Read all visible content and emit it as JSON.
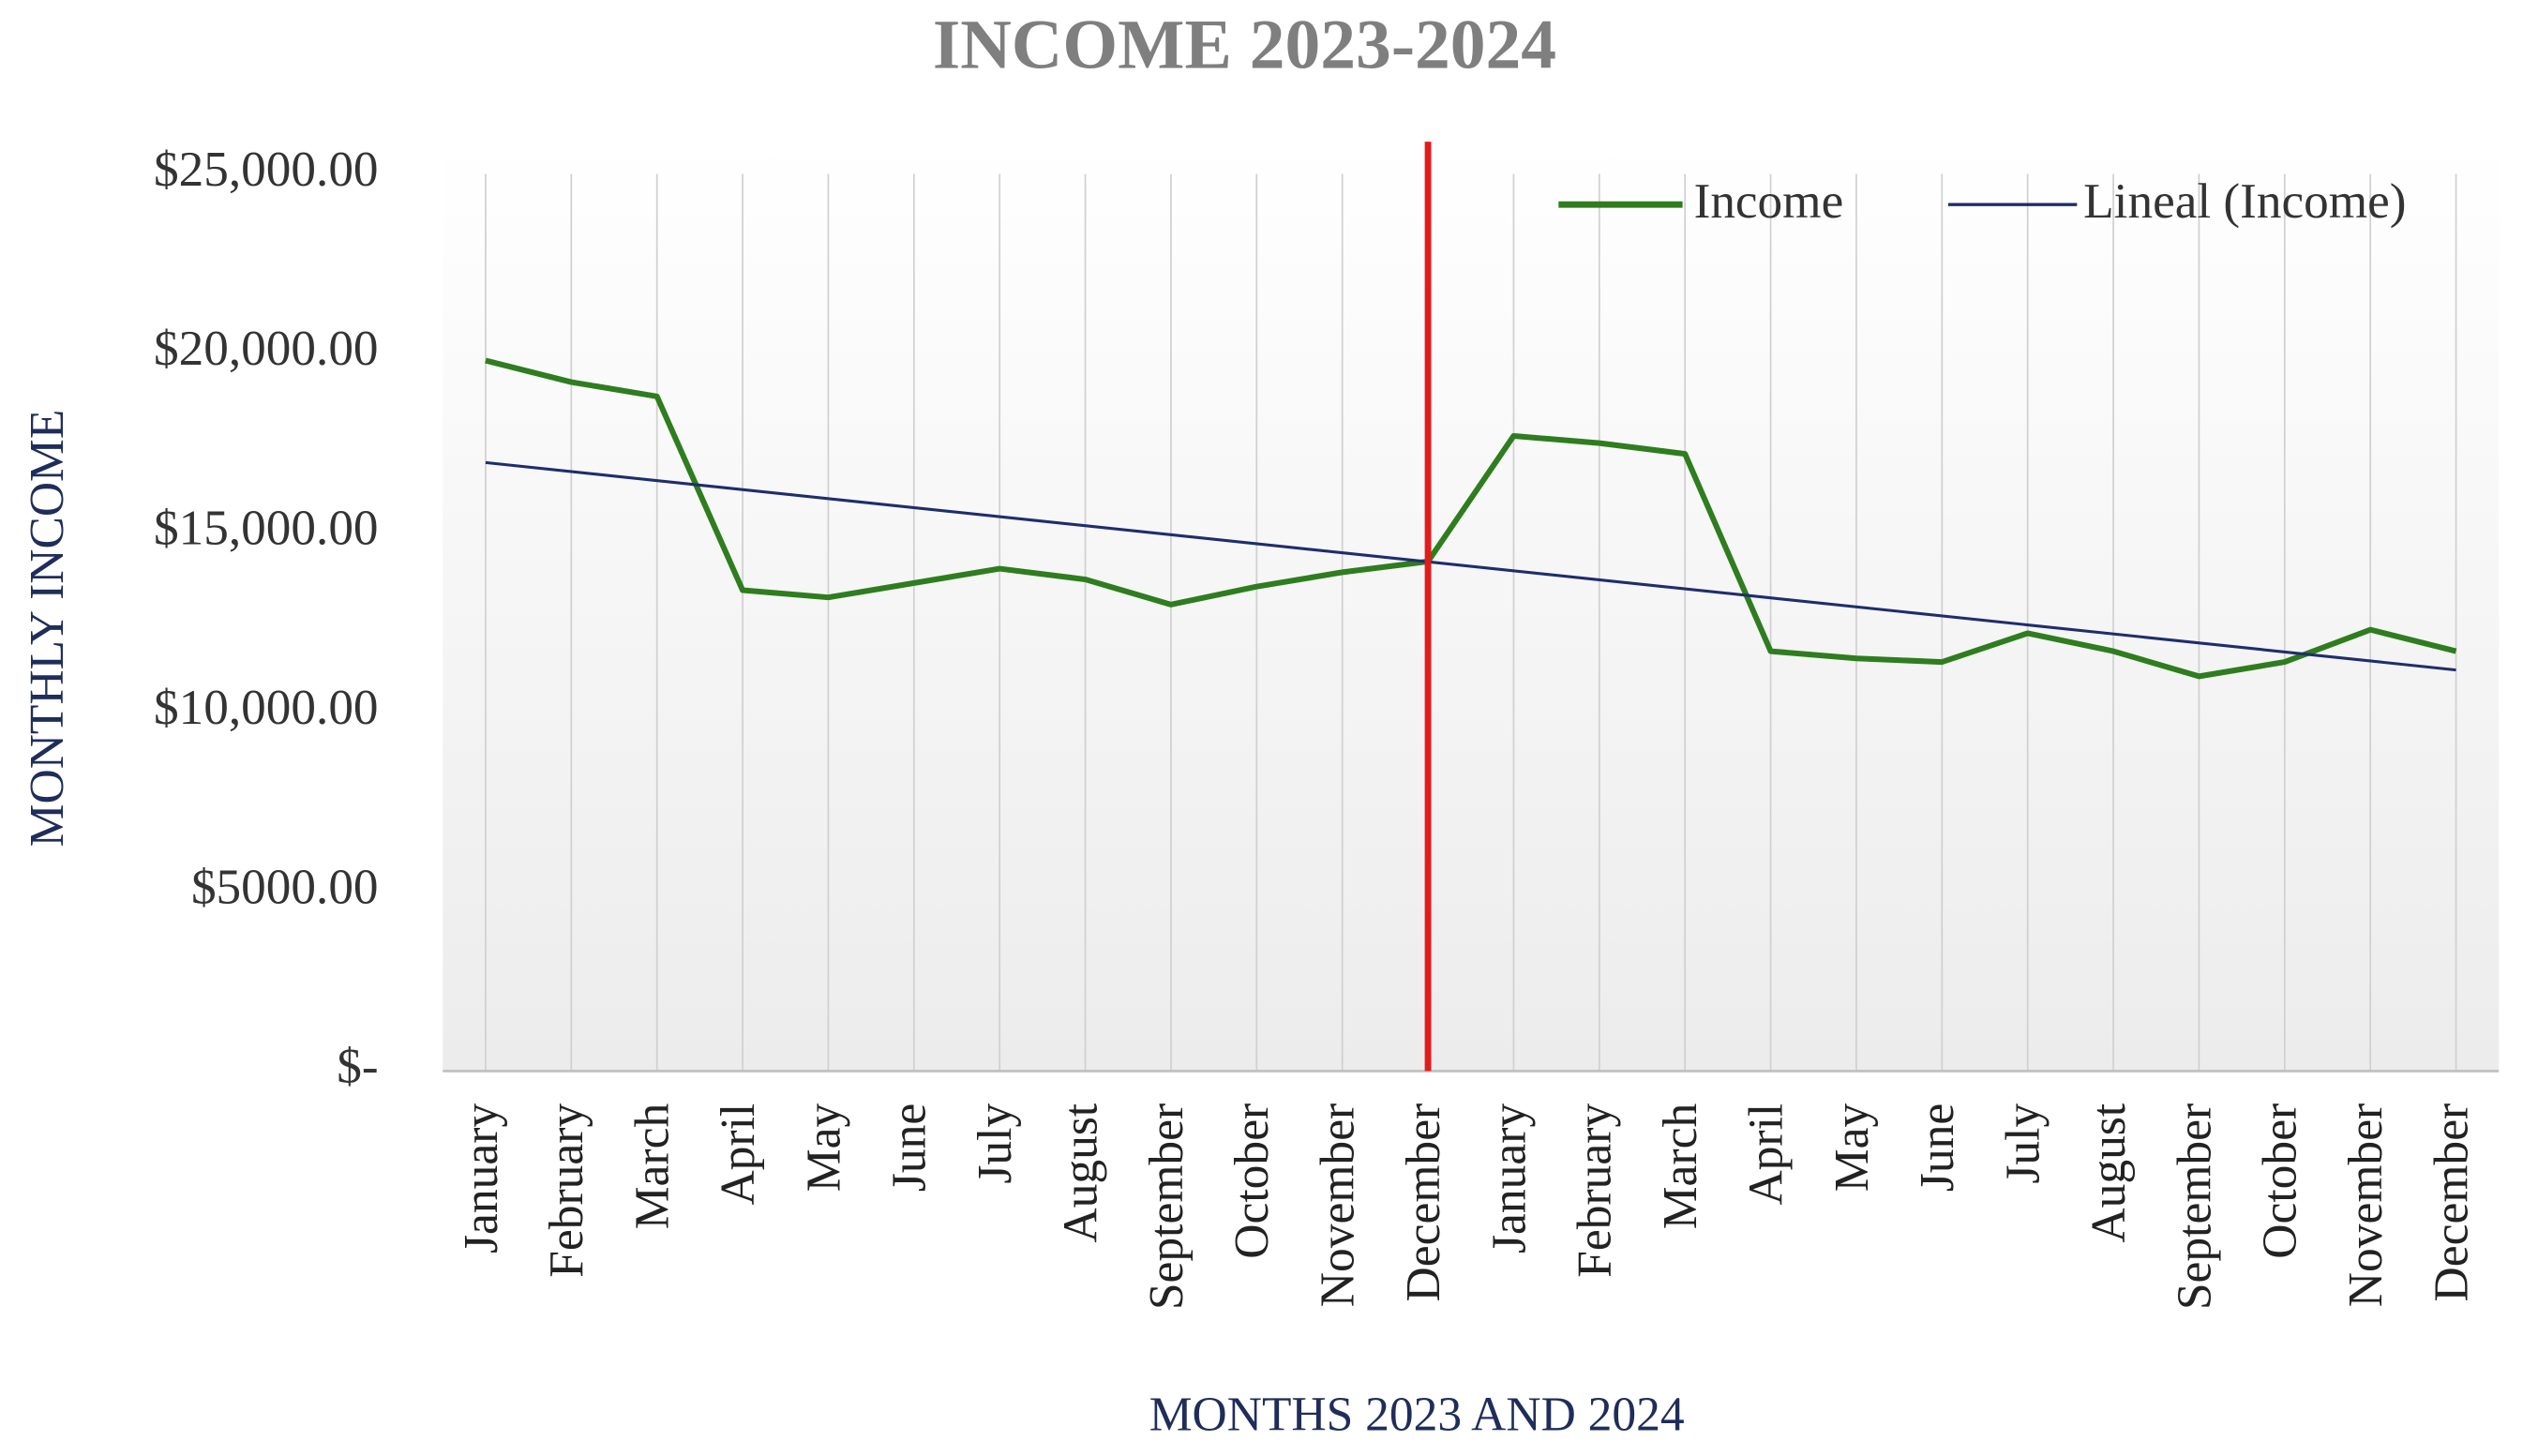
{
  "chart_data": {
    "type": "line",
    "title": "INCOME 2023-2024",
    "x_label": "MONTHS 2023 AND 2024",
    "y_label": "MONTHLY INCOME",
    "categories": [
      "January",
      "February",
      "March",
      "April",
      "May",
      "June",
      "July",
      "August",
      "September",
      "October",
      "November",
      "December",
      "January",
      "February",
      "March",
      "April",
      "May",
      "June",
      "July",
      "August",
      "September",
      "October",
      "November",
      "December"
    ],
    "series": [
      {
        "name": "Income",
        "color": "#2e7d1e",
        "values": [
          19800,
          19200,
          18800,
          13400,
          13200,
          13600,
          14000,
          13700,
          13000,
          13500,
          13900,
          14200,
          17700,
          17500,
          17200,
          11700,
          11500,
          11400,
          12200,
          11700,
          11000,
          11400,
          12300,
          11700
        ]
      }
    ],
    "trendline": {
      "name": "Lineal (Income)",
      "type": "linear",
      "series": 0,
      "color": "#1f2d6e"
    },
    "divider": {
      "category_index": 11,
      "color": "#e31b1b"
    },
    "ylim": [
      0,
      25000
    ],
    "yticks": [
      {
        "value": 0,
        "label": "$-"
      },
      {
        "value": 5000,
        "label": "$5000.00"
      },
      {
        "value": 10000,
        "label": "$10,000.00"
      },
      {
        "value": 15000,
        "label": "$15,000.00"
      },
      {
        "value": 20000,
        "label": "$20,000.00"
      },
      {
        "value": 25000,
        "label": "$25,000.00"
      }
    ],
    "grid": "x",
    "legend": "top-right"
  }
}
